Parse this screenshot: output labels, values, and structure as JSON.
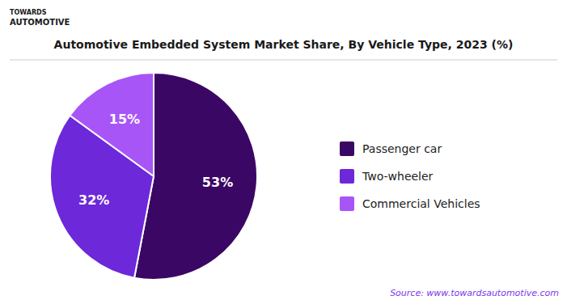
{
  "chart_data": {
    "type": "pie",
    "title": "Automotive Embedded System Market Share, By Vehicle Type, 2023 (%)",
    "categories": [
      "Passenger car",
      "Two-wheeler",
      "Commercial Vehicles"
    ],
    "values": [
      53,
      32,
      15
    ],
    "value_labels": [
      "53%",
      "32%",
      "15%"
    ],
    "colors": [
      "#3b0764",
      "#6d28d9",
      "#a855f7"
    ],
    "data_labels": true,
    "legend": "right",
    "annotations": [
      "TOWARDS",
      "AUTOMOTIVE",
      "Source: www.towardsautomotive.com"
    ]
  }
}
